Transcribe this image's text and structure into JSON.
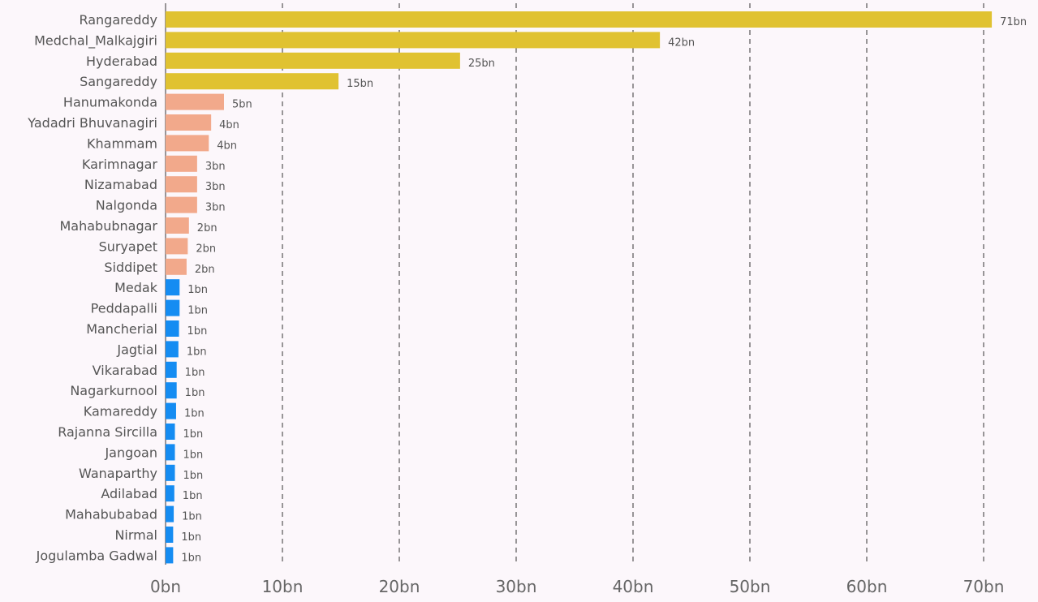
{
  "chart_data": {
    "type": "bar",
    "orientation": "horizontal",
    "title": "",
    "xlabel": "",
    "ylabel": "",
    "xlim": [
      0,
      72
    ],
    "x_ticks": [
      0,
      10,
      20,
      30,
      40,
      50,
      60,
      70
    ],
    "x_tick_labels": [
      "0bn",
      "10bn",
      "20bn",
      "30bn",
      "40bn",
      "50bn",
      "60bn",
      "70bn"
    ],
    "grid": "vertical-dashed",
    "legend": "none",
    "colors": {
      "high": "#e0c231",
      "mid": "#f2a98b",
      "low": "#158cf2"
    },
    "categories": [
      "Rangareddy",
      "Medchal_Malkajgiri",
      "Hyderabad",
      "Sangareddy",
      "Hanumakonda",
      "Yadadri Bhuvanagiri",
      "Khammam",
      "Karimnagar",
      "Nizamabad",
      "Nalgonda",
      "Mahabubnagar",
      "Suryapet",
      "Siddipet",
      "Medak",
      "Peddapalli",
      "Mancherial",
      "Jagtial",
      "Vikarabad",
      "Nagarkurnool",
      "Kamareddy",
      "Rajanna Sircilla",
      "Jangoan",
      "Wanaparthy",
      "Adilabad",
      "Mahabubabad",
      "Nirmal",
      "Jogulamba Gadwal"
    ],
    "values": [
      70.7,
      42.3,
      25.2,
      14.8,
      5.0,
      3.9,
      3.7,
      2.7,
      2.7,
      2.7,
      2.0,
      1.9,
      1.8,
      1.2,
      1.2,
      1.15,
      1.1,
      0.95,
      0.95,
      0.9,
      0.8,
      0.8,
      0.8,
      0.75,
      0.7,
      0.65,
      0.65
    ],
    "value_labels": [
      "71bn",
      "42bn",
      "25bn",
      "15bn",
      "5bn",
      "4bn",
      "4bn",
      "3bn",
      "3bn",
      "3bn",
      "2bn",
      "2bn",
      "2bn",
      "1bn",
      "1bn",
      "1bn",
      "1bn",
      "1bn",
      "1bn",
      "1bn",
      "1bn",
      "1bn",
      "1bn",
      "1bn",
      "1bn",
      "1bn",
      "1bn"
    ],
    "color_groups": [
      "high",
      "high",
      "high",
      "high",
      "mid",
      "mid",
      "mid",
      "mid",
      "mid",
      "mid",
      "mid",
      "mid",
      "mid",
      "low",
      "low",
      "low",
      "low",
      "low",
      "low",
      "low",
      "low",
      "low",
      "low",
      "low",
      "low",
      "low",
      "low"
    ]
  }
}
